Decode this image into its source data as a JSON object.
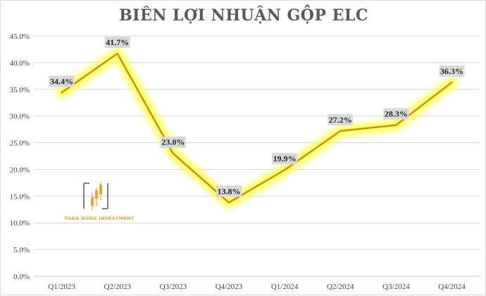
{
  "chart_data": {
    "type": "line",
    "title": "BIÊN LỢI NHUẬN GỘP ELC",
    "categories": [
      "Q1/2023",
      "Q2/2023",
      "Q3/2023",
      "Q4/2023",
      "Q1/2024",
      "Q2/2024",
      "Q3/2024",
      "Q4/2024"
    ],
    "series": [
      {
        "values": [
          34.4,
          41.7,
          23.0,
          13.8,
          19.9,
          27.2,
          28.3,
          36.3
        ],
        "labels": [
          "34.4%",
          "41.7%",
          "23.0%",
          "13.8%",
          "19.9%",
          "27.2%",
          "28.3%",
          "36.3%"
        ],
        "color": "#c8920a",
        "glow_color": "#ffff33"
      }
    ],
    "y_ticks": [
      "0.0%",
      "5.0%",
      "10.0%",
      "15.0%",
      "20.0%",
      "25.0%",
      "30.0%",
      "35.0%",
      "40.0%",
      "45.0%"
    ],
    "ylim": [
      0,
      45
    ],
    "grid": true,
    "legend": "none"
  },
  "watermark": {
    "text": "TUAN HUNG INVESTMENT",
    "color": "#e8a236"
  }
}
